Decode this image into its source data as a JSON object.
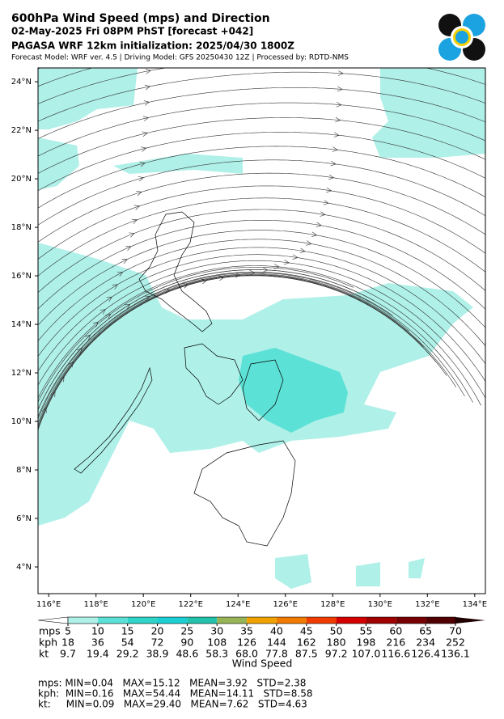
{
  "header": {
    "title": "600hPa Wind Speed (mps) and Direction",
    "forecast": "02-May-2025 Fri 08PM PhST [forecast +042]",
    "initialization": "PAGASA WRF 12km initialization: 2025/04/30 1800Z",
    "model_info": "Forecast Model: WRF ver. 4.5 | Driving Model: GFS 20250430 12Z | Processed by: RDTD-NMS"
  },
  "map": {
    "xlim": [
      115.55,
      134.45
    ],
    "ylim": [
      2.9,
      24.57
    ],
    "xticks": [
      {
        "value": 116,
        "label": "116°E"
      },
      {
        "value": 118,
        "label": "118°E"
      },
      {
        "value": 120,
        "label": "120°E"
      },
      {
        "value": 122,
        "label": "122°E"
      },
      {
        "value": 124,
        "label": "124°E"
      },
      {
        "value": 126,
        "label": "126°E"
      },
      {
        "value": 128,
        "label": "128°E"
      },
      {
        "value": 130,
        "label": "130°E"
      },
      {
        "value": 132,
        "label": "132°E"
      },
      {
        "value": 134,
        "label": "134°E"
      }
    ],
    "yticks": [
      {
        "value": 4,
        "label": "4°N"
      },
      {
        "value": 6,
        "label": "6°N"
      },
      {
        "value": 8,
        "label": "8°N"
      },
      {
        "value": 10,
        "label": "10°N"
      },
      {
        "value": 12,
        "label": "12°N"
      },
      {
        "value": 14,
        "label": "14°N"
      },
      {
        "value": 16,
        "label": "16°N"
      },
      {
        "value": 18,
        "label": "18°N"
      },
      {
        "value": 20,
        "label": "20°N"
      },
      {
        "value": 22,
        "label": "22°N"
      },
      {
        "value": 24,
        "label": "24°N"
      }
    ]
  },
  "colorbar": {
    "title": "Wind Speed",
    "colors": [
      "#ffffff",
      "#aff0e8",
      "#5ce1d6",
      "#2fd5c9",
      "#1ccfd2",
      "#22c3ad",
      "#97b557",
      "#f0a300",
      "#f07b00",
      "#f03c00",
      "#d40000",
      "#a00000",
      "#780000",
      "#500000",
      "#200000"
    ],
    "rows": [
      {
        "unit": "mps",
        "values": [
          5,
          10,
          15,
          20,
          25,
          30,
          35,
          40,
          45,
          50,
          55,
          60,
          65,
          70
        ]
      },
      {
        "unit": "kph",
        "values": [
          18,
          36,
          54,
          72,
          90,
          108,
          126,
          144,
          162,
          180,
          198,
          216,
          234,
          252
        ]
      },
      {
        "unit": "kt",
        "values": [
          9.7,
          19.4,
          29.2,
          38.9,
          48.6,
          58.3,
          {
            "value": 68,
            "label": "68.0"
          },
          77.8,
          87.5,
          97.2,
          {
            "value": 107,
            "label": "107.0"
          },
          116.6,
          126.4,
          136.1
        ]
      }
    ]
  },
  "stats": [
    "mps: MIN=0.04   MAX=15.12   MEAN=3.92   STD=2.38",
    "kph:  MIN=0.16   MAX=54.44   MEAN=14.11   STD=8.58",
    "kt:     MIN=0.09   MAX=29.40   MEAN=7.62   STD=4.63"
  ]
}
